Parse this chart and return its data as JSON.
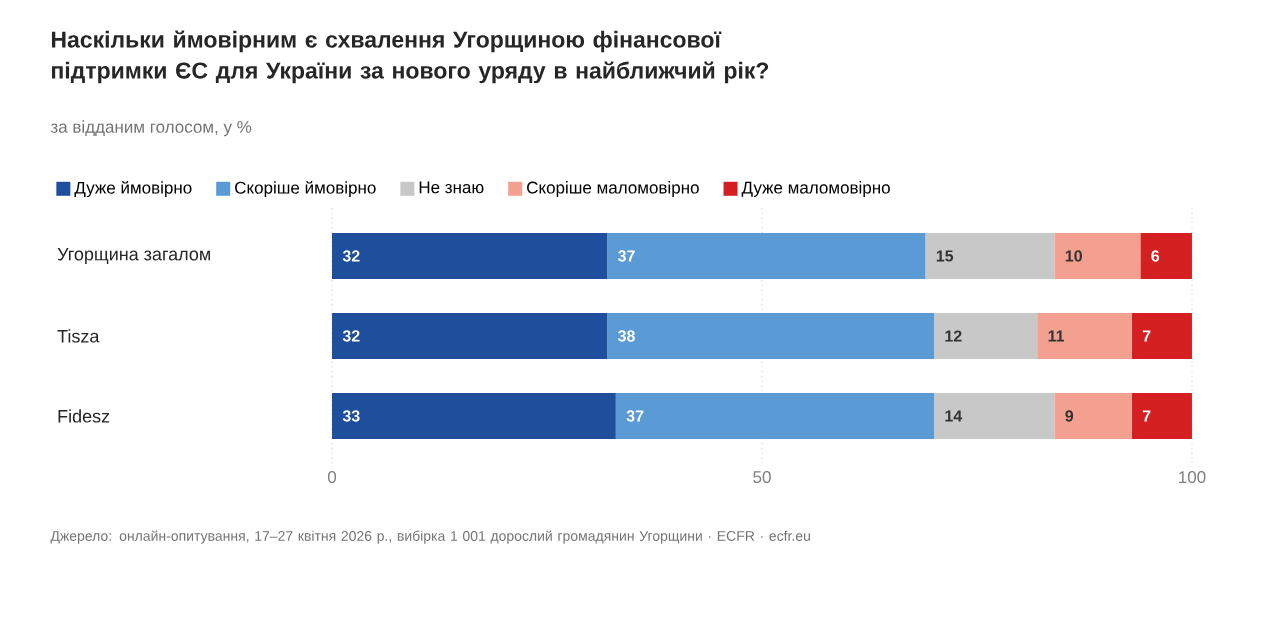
{
  "chart_data": {
    "type": "bar",
    "orientation": "horizontal",
    "stacked": true,
    "title": "Наскільки ймовірним є схвалення Угорщиною фінансової підтримки ЄС для України за нового уряду в найближчий рік?",
    "subtitle": "за відданим голосом, у %",
    "categories": [
      "Угорщина загалом",
      "Tisza",
      "Fidesz"
    ],
    "series": [
      {
        "name": "Дуже ймовірно",
        "color": "#1f4e9c",
        "values": [
          32,
          32,
          33
        ]
      },
      {
        "name": "Скоріше ймовірно",
        "color": "#5b9bd5",
        "values": [
          37,
          38,
          37
        ]
      },
      {
        "name": "Не знаю",
        "color": "#c8c8c8",
        "values": [
          15,
          12,
          14
        ]
      },
      {
        "name": "Скоріше маломовірно",
        "color": "#f4a090",
        "values": [
          10,
          11,
          9
        ]
      },
      {
        "name": "Дуже маломовірно",
        "color": "#d42020",
        "values": [
          6,
          7,
          7
        ]
      }
    ],
    "xlim": [
      0,
      100
    ],
    "xticks": [
      0,
      50,
      100
    ],
    "grid": "x",
    "legend": "top",
    "data_labels": true,
    "annotations": [
      "Джерело: онлайн-опитування, 17–27 квітня 2026 р., вибірка 1 001 дорослий громадянин Угорщини · ECFR · ecfr.eu"
    ]
  }
}
